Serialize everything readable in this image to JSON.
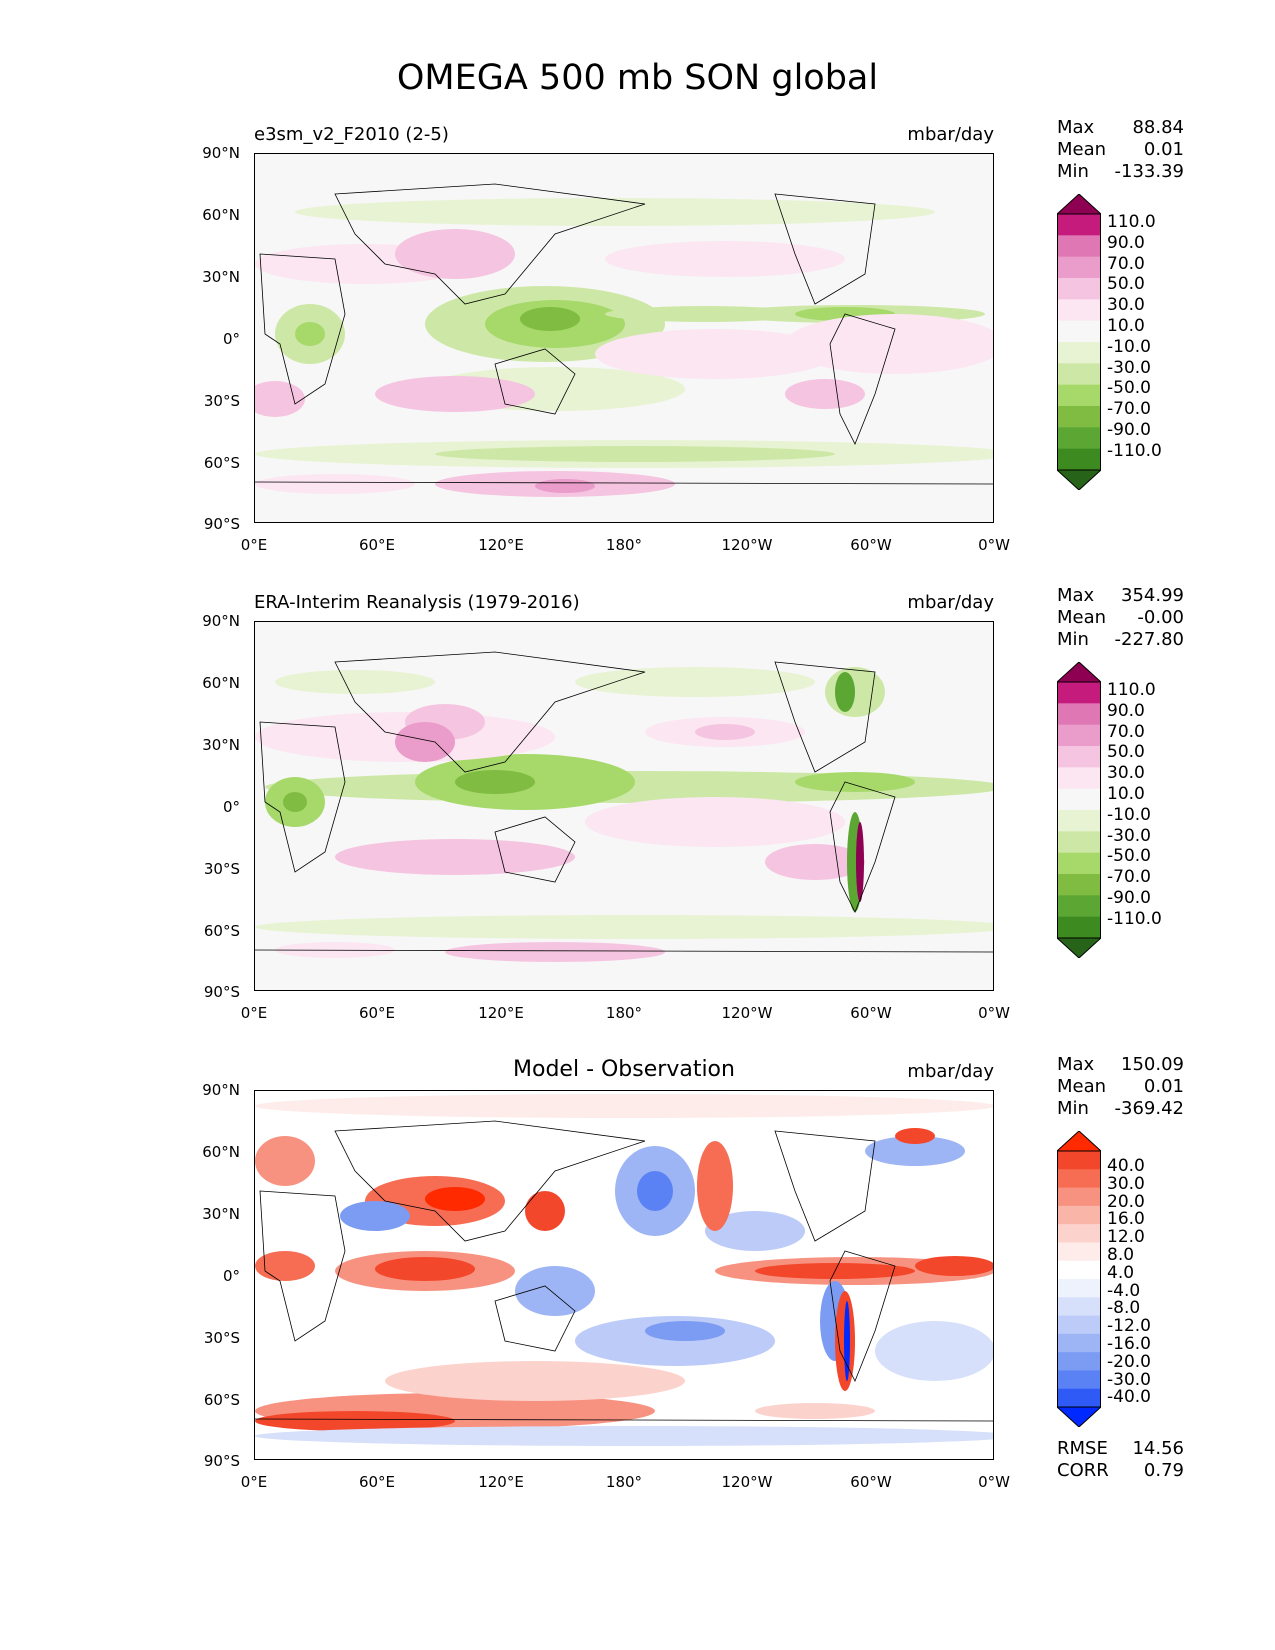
{
  "figure": {
    "title": "OMEGA 500 mb SON global"
  },
  "lat_ticks": [
    "90°N",
    "60°N",
    "30°N",
    "0°",
    "30°S",
    "60°S",
    "90°S"
  ],
  "lon_ticks": [
    "0°E",
    "60°E",
    "120°E",
    "180°",
    "120°W",
    "60°W",
    "0°W"
  ],
  "colors": {
    "omega_levels": [
      "#276419",
      "#3d8a21",
      "#5ca633",
      "#7fbc41",
      "#a6d96a",
      "#cde8a6",
      "#e8f3d3",
      "#f7f7f7",
      "#fbe6f1",
      "#f5c4e0",
      "#ea9cca",
      "#de77b4",
      "#c51b7d",
      "#8e0152"
    ],
    "diff_levels": [
      "#0029ff",
      "#2f5af5",
      "#5a82f4",
      "#7c9cf4",
      "#9db5f5",
      "#bccbf7",
      "#d7e0fa",
      "#eef2fd",
      "#ffffff",
      "#fdecea",
      "#fcd2cc",
      "#fab5a9",
      "#f89280",
      "#f66d53",
      "#f3472b",
      "#ff2a00"
    ]
  },
  "panels": [
    {
      "title": "e3sm_v2_F2010 (2-5)",
      "units": "mbar/day",
      "stats": {
        "max_label": "Max",
        "max_value": "88.84",
        "mean_label": "Mean",
        "mean_value": "0.01",
        "min_label": "Min",
        "min_value": "-133.39"
      },
      "colorbar_labels": [
        "110.0",
        "90.0",
        "70.0",
        "50.0",
        "30.0",
        "10.0",
        "-10.0",
        "-30.0",
        "-50.0",
        "-70.0",
        "-90.0",
        "-110.0"
      ]
    },
    {
      "title": "ERA-Interim Reanalysis (1979-2016)",
      "units": "mbar/day",
      "stats": {
        "max_label": "Max",
        "max_value": "354.99",
        "mean_label": "Mean",
        "mean_value": "-0.00",
        "min_label": "Min",
        "min_value": "-227.80"
      },
      "colorbar_labels": [
        "110.0",
        "90.0",
        "70.0",
        "50.0",
        "30.0",
        "10.0",
        "-10.0",
        "-30.0",
        "-50.0",
        "-70.0",
        "-90.0",
        "-110.0"
      ]
    },
    {
      "title": "Model - Observation",
      "units": "mbar/day",
      "stats": {
        "max_label": "Max",
        "max_value": "150.09",
        "mean_label": "Mean",
        "mean_value": "0.01",
        "min_label": "Min",
        "min_value": "-369.42"
      },
      "colorbar_labels": [
        "40.0",
        "30.0",
        "20.0",
        "16.0",
        "12.0",
        "8.0",
        "4.0",
        "-4.0",
        "-8.0",
        "-12.0",
        "-16.0",
        "-20.0",
        "-30.0",
        "-40.0"
      ],
      "metrics": {
        "rmse_label": "RMSE",
        "rmse_value": "14.56",
        "corr_label": "CORR",
        "corr_value": "0.79"
      }
    }
  ]
}
